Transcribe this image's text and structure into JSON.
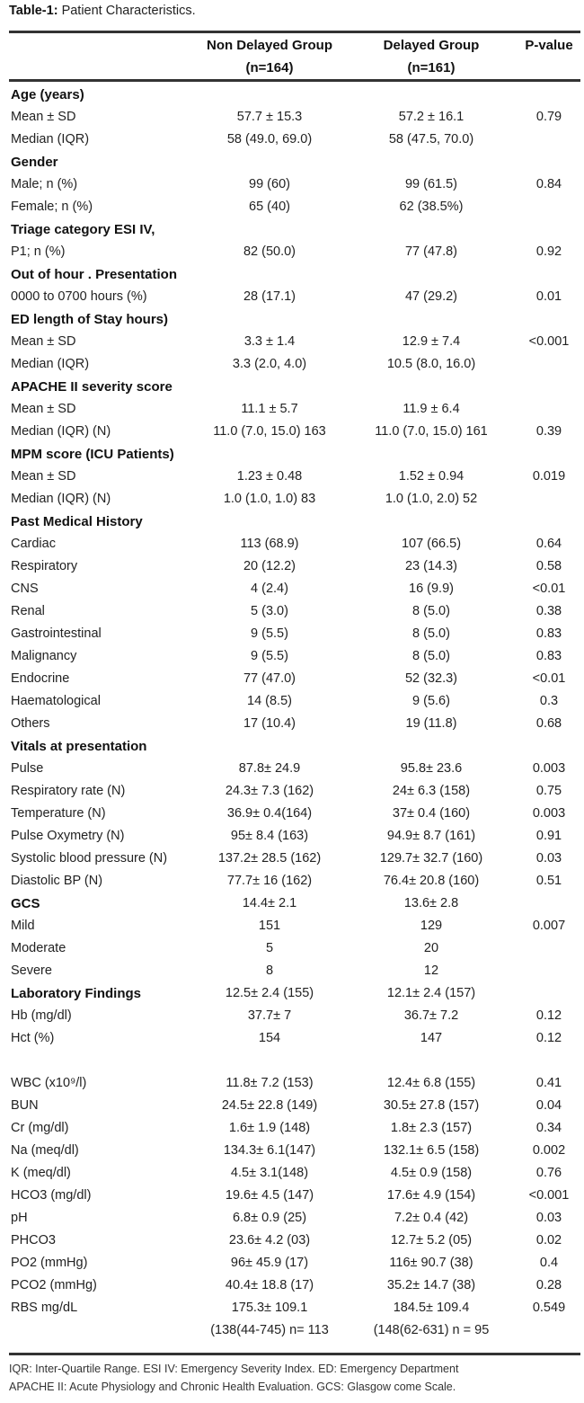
{
  "title": {
    "label": "Table-1:",
    "text": "Patient Characteristics."
  },
  "header": {
    "col_a": [
      "Non Delayed Group",
      "(n=164)"
    ],
    "col_b": [
      "Delayed Group",
      "(n=161)"
    ],
    "col_p": "P-value"
  },
  "rows": [
    {
      "heading": true,
      "label": "Age (years)"
    },
    {
      "label": "Mean ± SD",
      "a": "57.7 ± 15.3",
      "b": "57.2 ± 16.1",
      "p": "0.79"
    },
    {
      "label": "Median (IQR)",
      "a": "58 (49.0, 69.0)",
      "b": "58 (47.5, 70.0)",
      "p": ""
    },
    {
      "heading": true,
      "label": "Gender"
    },
    {
      "label": "Male; n (%)",
      "a": "99 (60)",
      "b": "99 (61.5)",
      "p": "0.84"
    },
    {
      "label": "Female; n (%)",
      "a": "65 (40)",
      "b": "62 (38.5%)",
      "p": ""
    },
    {
      "heading": true,
      "label": "Triage category ESI IV,"
    },
    {
      "label": "P1; n (%)",
      "a": "82 (50.0)",
      "b": "77 (47.8)",
      "p": "0.92"
    },
    {
      "heading": true,
      "label": "Out of hour . Presentation"
    },
    {
      "label": "0000 to 0700 hours (%)",
      "a": "28 (17.1)",
      "b": "47 (29.2)",
      "p": "0.01"
    },
    {
      "heading": true,
      "label": "ED length of Stay  hours)"
    },
    {
      "label": "Mean ± SD",
      "a": "3.3 ± 1.4",
      "b": "12.9 ± 7.4",
      "p": "<0.001"
    },
    {
      "label": "Median (IQR)",
      "a": "3.3 (2.0, 4.0)",
      "b": "10.5 (8.0, 16.0)",
      "p": ""
    },
    {
      "heading": true,
      "label": "APACHE II severity score"
    },
    {
      "label": "Mean ± SD",
      "a": "11.1 ± 5.7",
      "b": "11.9 ± 6.4",
      "p": ""
    },
    {
      "label": "Median (IQR) (N)",
      "a": "11.0 (7.0, 15.0) 163",
      "b": "11.0 (7.0, 15.0) 161",
      "p": "0.39"
    },
    {
      "heading": true,
      "label": "MPM score (ICU Patients)"
    },
    {
      "label": "Mean ± SD",
      "a": "1.23 ± 0.48",
      "b": "1.52 ± 0.94",
      "p": "0.019"
    },
    {
      "label": "Median (IQR) (N)",
      "a": "1.0 (1.0, 1.0) 83",
      "b": "1.0 (1.0, 2.0) 52",
      "p": ""
    },
    {
      "heading": true,
      "label": "Past Medical History"
    },
    {
      "label": "Cardiac",
      "a": "113 (68.9)",
      "b": "107 (66.5)",
      "p": "0.64"
    },
    {
      "label": "Respiratory",
      "a": "20 (12.2)",
      "b": "23 (14.3)",
      "p": "0.58"
    },
    {
      "label": "CNS",
      "a": "4 (2.4)",
      "b": "16 (9.9)",
      "p": "<0.01"
    },
    {
      "label": "Renal",
      "a": "5 (3.0)",
      "b": "8 (5.0)",
      "p": "0.38"
    },
    {
      "label": "Gastrointestinal",
      "a": "9 (5.5)",
      "b": "8 (5.0)",
      "p": "0.83"
    },
    {
      "label": "Malignancy",
      "a": "9 (5.5)",
      "b": "8 (5.0)",
      "p": "0.83"
    },
    {
      "label": "Endocrine",
      "a": "77 (47.0)",
      "b": "52 (32.3)",
      "p": "<0.01"
    },
    {
      "label": "Haematological",
      "a": "14 (8.5)",
      "b": "9 (5.6)",
      "p": "0.3"
    },
    {
      "label": "Others",
      "a": "17 (10.4)",
      "b": "19 (11.8)",
      "p": "0.68"
    },
    {
      "heading": true,
      "label": "Vitals at presentation"
    },
    {
      "label": "Pulse",
      "a": "87.8± 24.9",
      "b": "95.8± 23.6",
      "p": "0.003"
    },
    {
      "label": "Respiratory rate (N)",
      "a": "24.3± 7.3 (162)",
      "b": "24± 6.3 (158)",
      "p": "0.75"
    },
    {
      "label": "Temperature (N)",
      "a": "36.9± 0.4(164)",
      "b": "37± 0.4 (160)",
      "p": "0.003"
    },
    {
      "label": "Pulse Oxymetry (N)",
      "a": "95± 8.4 (163)",
      "b": "94.9± 8.7 (161)",
      "p": "0.91"
    },
    {
      "label": "Systolic blood pressure (N)",
      "a": "137.2± 28.5 (162)",
      "b": "129.7± 32.7 (160)",
      "p": "0.03"
    },
    {
      "label": "Diastolic BP (N)",
      "a": "77.7± 16 (162)",
      "b": "76.4± 20.8 (160)",
      "p": "0.51"
    },
    {
      "heading": true,
      "label": "GCS",
      "a": "14.4± 2.1",
      "b": "13.6± 2.8",
      "p": ""
    },
    {
      "label": "Mild",
      "a": "151",
      "b": "129",
      "p": "0.007"
    },
    {
      "label": "Moderate",
      "a": "5",
      "b": "20",
      "p": ""
    },
    {
      "label": "Severe",
      "a": "8",
      "b": "12",
      "p": ""
    },
    {
      "heading": true,
      "label": "Laboratory Findings",
      "a": "12.5± 2.4 (155)",
      "b": "12.1± 2.4 (157)",
      "p": ""
    },
    {
      "label": "Hb (mg/dl)",
      "a": "37.7± 7",
      "b": "36.7± 7.2",
      "p": "0.12"
    },
    {
      "label": "Hct (%)",
      "a": "154",
      "b": "147",
      "p": "0.12"
    },
    {
      "label": "",
      "a": "",
      "b": "",
      "p": ""
    },
    {
      "label": "WBC (x10⁹/l)",
      "a": "11.8± 7.2 (153)",
      "b": "12.4± 6.8 (155)",
      "p": "0.41"
    },
    {
      "label": "BUN",
      "a": "24.5± 22.8 (149)",
      "b": "30.5± 27.8 (157)",
      "p": "0.04"
    },
    {
      "label": "Cr (mg/dl)",
      "a": "1.6± 1.9 (148)",
      "b": "1.8± 2.3 (157)",
      "p": "0.34"
    },
    {
      "label": "Na (meq/dl)",
      "a": "134.3± 6.1(147)",
      "b": "132.1± 6.5 (158)",
      "p": "0.002"
    },
    {
      "label": "K (meq/dl)",
      "a": "4.5± 3.1(148)",
      "b": "4.5± 0.9 (158)",
      "p": "0.76"
    },
    {
      "label": "HCO3 (mg/dl)",
      "a": "19.6± 4.5 (147)",
      "b": "17.6± 4.9 (154)",
      "p": "<0.001"
    },
    {
      "label": "pH",
      "a": "6.8± 0.9 (25)",
      "b": "7.2± 0.4 (42)",
      "p": "0.03"
    },
    {
      "label": "PHCO3",
      "a": "23.6± 4.2 (03)",
      "b": "12.7± 5.2 (05)",
      "p": "0.02"
    },
    {
      "label": "PO2 (mmHg)",
      "a": "96± 45.9 (17)",
      "b": "116± 90.7 (38)",
      "p": "0.4"
    },
    {
      "label": "PCO2 (mmHg)",
      "a": "40.4± 18.8 (17)",
      "b": "35.2± 14.7 (38)",
      "p": "0.28"
    },
    {
      "label": "RBS mg/dL",
      "a": "175.3± 109.1",
      "b": "184.5± 109.4",
      "p": "0.549"
    },
    {
      "label": "",
      "a": "(138(44-745) n= 113",
      "b": "(148(62-631) n = 95",
      "p": ""
    }
  ],
  "footnotes": [
    "IQR: Inter-Quartile Range. ESI IV: Emergency Severity Index. ED: Emergency Department",
    "APACHE II: Acute Physiology and Chronic Health Evaluation. GCS: Glasgow come Scale."
  ]
}
